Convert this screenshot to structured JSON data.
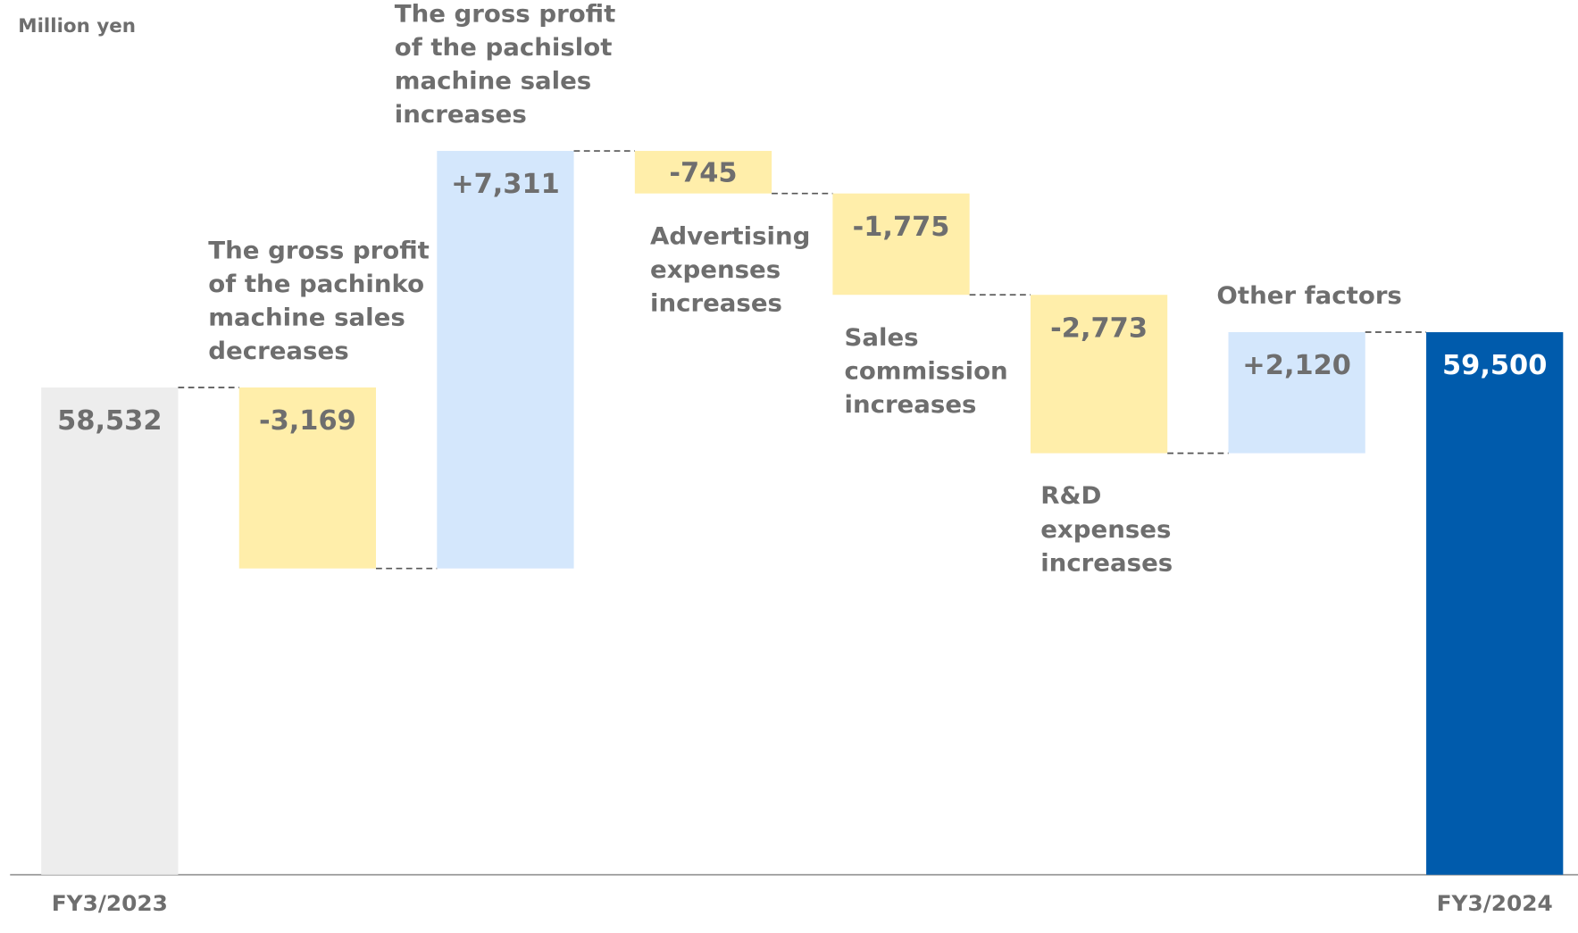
{
  "chart_data": {
    "type": "waterfall",
    "unit_label": "Million yen",
    "categories": [
      "FY3/2023",
      "The gross profit of the pachinko machine sales decreases",
      "The gross profit of the pachislot machine sales increases",
      "Advertising expenses increases",
      "Sales commission increases",
      "R&D expenses increases",
      "Other factors",
      "FY3/2024"
    ],
    "values": [
      58532,
      -3169,
      7311,
      -745,
      -1775,
      -2773,
      2120,
      59500
    ],
    "value_labels": [
      "58,532",
      "-3,169",
      "+7,311",
      "-745",
      "-1,775",
      "-2,773",
      "+2,120",
      "59,500"
    ],
    "colors": [
      "#ededed",
      "#ffeeaa",
      "#d4e7fc",
      "#ffeeaa",
      "#ffeeaa",
      "#ffeeaa",
      "#d4e7fc",
      "#005bac"
    ],
    "ylim": [
      50000,
      63000
    ]
  }
}
